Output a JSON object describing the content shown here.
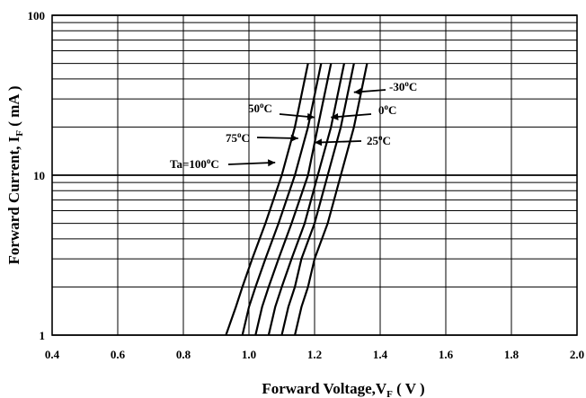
{
  "chart_data": {
    "type": "line",
    "xlabel": "Forward Voltage,V",
    "xlabel_sub": "F",
    "xlabel_unit": " ( V )",
    "ylabel": "Forward Current, I",
    "ylabel_sub": "F",
    "ylabel_unit": " ( mA )",
    "xlim": [
      0.4,
      2.0
    ],
    "ylim": [
      1,
      100
    ],
    "yscale": "log",
    "grid": true,
    "x_ticks": [
      0.4,
      0.6,
      0.8,
      1.0,
      1.2,
      1.4,
      1.6,
      1.8,
      2.0
    ],
    "x_tick_labels": [
      "0.4",
      "0.6",
      "0.8",
      "1.0",
      "1.2",
      "1.4",
      "1.6",
      "1.8",
      "2.0"
    ],
    "y_tick_labels": [
      {
        "value": 1,
        "label": "1"
      },
      {
        "value": 10,
        "label": "10"
      },
      {
        "value": 100,
        "label": "100"
      }
    ],
    "series": [
      {
        "name": "Ta=100°C",
        "points": [
          [
            0.93,
            1
          ],
          [
            0.96,
            1.5
          ],
          [
            0.98,
            2
          ],
          [
            1.01,
            3
          ],
          [
            1.05,
            5
          ],
          [
            1.1,
            10
          ],
          [
            1.14,
            20
          ],
          [
            1.18,
            50
          ]
        ]
      },
      {
        "name": "75°C",
        "points": [
          [
            0.98,
            1
          ],
          [
            1.0,
            1.5
          ],
          [
            1.02,
            2
          ],
          [
            1.05,
            3
          ],
          [
            1.09,
            5
          ],
          [
            1.14,
            10
          ],
          [
            1.18,
            20
          ],
          [
            1.22,
            50
          ]
        ]
      },
      {
        "name": "50°C",
        "points": [
          [
            1.02,
            1
          ],
          [
            1.04,
            1.5
          ],
          [
            1.06,
            2
          ],
          [
            1.09,
            3
          ],
          [
            1.13,
            5
          ],
          [
            1.18,
            10
          ],
          [
            1.21,
            20
          ],
          [
            1.25,
            50
          ]
        ]
      },
      {
        "name": "25°C",
        "points": [
          [
            1.06,
            1
          ],
          [
            1.08,
            1.5
          ],
          [
            1.1,
            2
          ],
          [
            1.13,
            3
          ],
          [
            1.17,
            5
          ],
          [
            1.21,
            10
          ],
          [
            1.25,
            20
          ],
          [
            1.29,
            50
          ]
        ]
      },
      {
        "name": "0°C",
        "points": [
          [
            1.1,
            1
          ],
          [
            1.12,
            1.5
          ],
          [
            1.14,
            2
          ],
          [
            1.16,
            3
          ],
          [
            1.2,
            5
          ],
          [
            1.24,
            10
          ],
          [
            1.28,
            20
          ],
          [
            1.32,
            50
          ]
        ]
      },
      {
        "name": "-30°C",
        "points": [
          [
            1.14,
            1
          ],
          [
            1.16,
            1.5
          ],
          [
            1.18,
            2
          ],
          [
            1.2,
            3
          ],
          [
            1.24,
            5
          ],
          [
            1.28,
            10
          ],
          [
            1.32,
            20
          ],
          [
            1.36,
            50
          ]
        ]
      }
    ],
    "annotations": [
      {
        "base": "Ta=100",
        "sup": "o",
        "tail": "C",
        "series": "Ta=100°C",
        "arrow_to": [
          1.08,
          12
        ]
      },
      {
        "base": "75",
        "sup": "o",
        "tail": "C",
        "series": "75°C",
        "arrow_to": [
          1.15,
          17
        ]
      },
      {
        "base": "50",
        "sup": "o",
        "tail": "C",
        "series": "50°C",
        "arrow_to": [
          1.2,
          23
        ]
      },
      {
        "base": "25",
        "sup": "o",
        "tail": "C",
        "series": "25°C",
        "arrow_to": [
          1.2,
          16
        ]
      },
      {
        "base": "0",
        "sup": "o",
        "tail": "C",
        "series": "0°C",
        "arrow_to": [
          1.25,
          23
        ]
      },
      {
        "base": "-30",
        "sup": "o",
        "tail": "C",
        "series": "-30°C",
        "arrow_to": [
          1.32,
          33
        ]
      }
    ]
  }
}
